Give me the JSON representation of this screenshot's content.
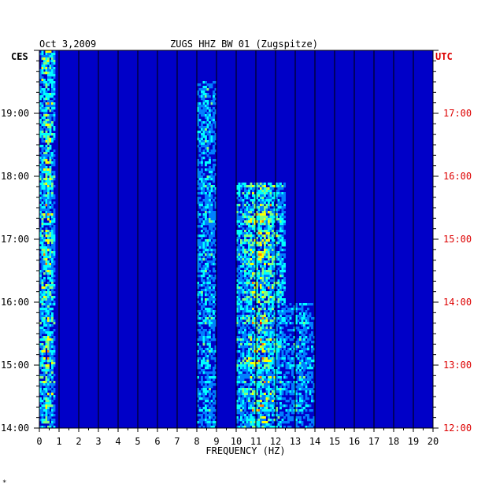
{
  "header": {
    "date": "Oct 3,2009",
    "station": "ZUGS HHZ BW 01 (Zugspitze)",
    "left_timezone": "CES",
    "right_timezone": "UTC"
  },
  "footer_mark": "*",
  "colors": {
    "background": "#0000c8",
    "grid": "#000000",
    "utc_text": "#dd0000",
    "text": "#000000"
  },
  "chart_data": {
    "type": "heatmap",
    "title": "ZUGS HHZ BW 01 (Zugspitze)",
    "xlabel": "FREQUENCY (HZ)",
    "ylabel": "",
    "xlim": [
      0,
      20
    ],
    "x_ticks": [
      "0",
      "1",
      "2",
      "3",
      "4",
      "5",
      "6",
      "7",
      "8",
      "9",
      "10",
      "11",
      "12",
      "13",
      "14",
      "15",
      "16",
      "17",
      "18",
      "19",
      "20"
    ],
    "y_ticks_left": [
      "19:00",
      "18:00",
      "17:00",
      "16:00",
      "15:00",
      "14:00"
    ],
    "y_ticks_right": [
      "17:00",
      "16:00",
      "15:00",
      "14:00",
      "13:00",
      "12:00"
    ],
    "y_time_range_ces": [
      "14:00",
      "20:00"
    ],
    "y_time_range_utc": [
      "12:00",
      "18:00"
    ],
    "colormap": [
      "#00009a",
      "#0000ff",
      "#0080ff",
      "#00ffff",
      "#80ff80",
      "#ffff00",
      "#ff8000",
      "#ff0000"
    ],
    "energy_bands": [
      {
        "freq_range": [
          0,
          0.8
        ],
        "time_range_ces": [
          "14:00",
          "20:00"
        ],
        "intensity": "high"
      },
      {
        "freq_range": [
          10,
          12.5
        ],
        "time_range_ces": [
          "14:00",
          "17:55"
        ],
        "intensity": "high"
      },
      {
        "freq_range": [
          8,
          9
        ],
        "time_range_ces": [
          "14:00",
          "19:30"
        ],
        "intensity": "medium"
      },
      {
        "freq_range": [
          12.5,
          14
        ],
        "time_range_ces": [
          "14:00",
          "16:00"
        ],
        "intensity": "medium"
      }
    ],
    "grid": true
  }
}
